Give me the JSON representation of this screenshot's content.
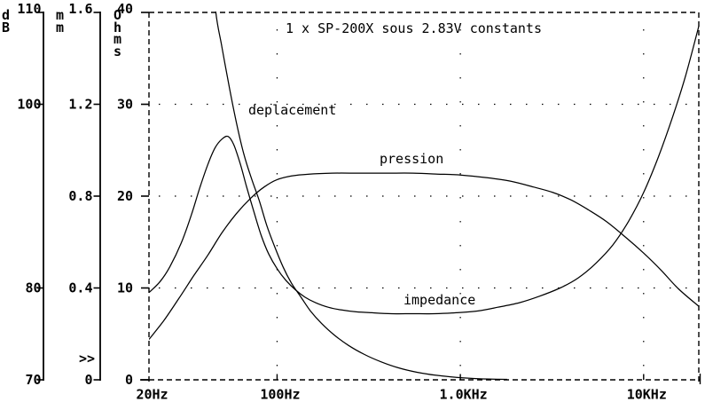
{
  "colors": {
    "fg": "#000000",
    "bg": "#ffffff"
  },
  "chart_data": {
    "type": "line",
    "title": "1 x SP-200X sous 2.83V constants",
    "x_axis": {
      "scale": "log",
      "range_hz": [
        20,
        20000
      ],
      "ticks": [
        {
          "f": 20,
          "label": "20Hz"
        },
        {
          "f": 100,
          "label": "100Hz"
        },
        {
          "f": 1000,
          "label": "1.0KHz"
        },
        {
          "f": 10000,
          "label": "10KHz"
        }
      ]
    },
    "y_axes": [
      {
        "name": "spl",
        "unit_label": "d\nB",
        "range": [
          70,
          110
        ],
        "ticks": [
          {
            "v": 110,
            "label": "110"
          },
          {
            "v": 100,
            "label": "100"
          },
          {
            "v": 80,
            "label": "80"
          },
          {
            "v": 70,
            "label": "70"
          }
        ]
      },
      {
        "name": "displacement",
        "unit_label": "m\nm",
        "range": [
          0,
          1.6
        ],
        "marker": ">>",
        "ticks": [
          {
            "v": 1.6,
            "label": "1.6"
          },
          {
            "v": 1.2,
            "label": "1.2"
          },
          {
            "v": 0.8,
            "label": "0.8"
          },
          {
            "v": 0.4,
            "label": "0.4"
          },
          {
            "v": 0,
            "label": "0"
          }
        ]
      },
      {
        "name": "impedance",
        "unit_label": "O\nh\nm\ns",
        "range": [
          0,
          40
        ],
        "ticks": [
          {
            "v": 40,
            "label": "40"
          },
          {
            "v": 30,
            "label": "30"
          },
          {
            "v": 20,
            "label": "20"
          },
          {
            "v": 10,
            "label": "10"
          },
          {
            "v": 0,
            "label": "0"
          }
        ]
      }
    ],
    "grid": {
      "h_ohms": [
        10,
        20,
        30
      ],
      "v_freq": [
        100,
        1000,
        10000
      ]
    },
    "series": [
      {
        "name": "deplacement",
        "label": "deplacement",
        "axis": "displacement",
        "unit": "mm",
        "points": [
          [
            40,
            2.3
          ],
          [
            43,
            1.95
          ],
          [
            46,
            1.62
          ],
          [
            50,
            1.45
          ],
          [
            55,
            1.27
          ],
          [
            60,
            1.12
          ],
          [
            66,
            0.98
          ],
          [
            73,
            0.87
          ],
          [
            80,
            0.78
          ],
          [
            88,
            0.67
          ],
          [
            97,
            0.58
          ],
          [
            108,
            0.49
          ],
          [
            120,
            0.42
          ],
          [
            135,
            0.36
          ],
          [
            152,
            0.3
          ],
          [
            175,
            0.245
          ],
          [
            205,
            0.195
          ],
          [
            245,
            0.15
          ],
          [
            300,
            0.11
          ],
          [
            370,
            0.078
          ],
          [
            460,
            0.052
          ],
          [
            580,
            0.033
          ],
          [
            730,
            0.02
          ],
          [
            950,
            0.011
          ],
          [
            1250,
            0.005
          ],
          [
            1800,
            0.002
          ]
        ]
      },
      {
        "name": "pression",
        "label": "pression",
        "axis": "spl",
        "unit": "dB",
        "points": [
          [
            20,
            74.4
          ],
          [
            24,
            76.4
          ],
          [
            29,
            78.8
          ],
          [
            35,
            81.3
          ],
          [
            42,
            83.6
          ],
          [
            50,
            86.0
          ],
          [
            60,
            88.1
          ],
          [
            72,
            89.8
          ],
          [
            85,
            91.0
          ],
          [
            100,
            91.8
          ],
          [
            120,
            92.2
          ],
          [
            150,
            92.4
          ],
          [
            200,
            92.5
          ],
          [
            280,
            92.5
          ],
          [
            400,
            92.5
          ],
          [
            550,
            92.5
          ],
          [
            750,
            92.4
          ],
          [
            1000,
            92.3
          ],
          [
            1400,
            92.0
          ],
          [
            1900,
            91.6
          ],
          [
            2500,
            91.0
          ],
          [
            3200,
            90.4
          ],
          [
            4000,
            89.6
          ],
          [
            5000,
            88.5
          ],
          [
            6300,
            87.2
          ],
          [
            8000,
            85.5
          ],
          [
            10000,
            83.8
          ],
          [
            12500,
            81.9
          ],
          [
            15500,
            79.9
          ],
          [
            20000,
            78.0
          ]
        ]
      },
      {
        "name": "impedance",
        "label": "impedance",
        "axis": "impedance",
        "unit": "Ohms",
        "points": [
          [
            20,
            9.5
          ],
          [
            23,
            10.7
          ],
          [
            26,
            12.3
          ],
          [
            30,
            14.9
          ],
          [
            34,
            17.9
          ],
          [
            38,
            21.0
          ],
          [
            42,
            23.5
          ],
          [
            46,
            25.3
          ],
          [
            50,
            26.2
          ],
          [
            54,
            26.5
          ],
          [
            58,
            25.6
          ],
          [
            63,
            23.5
          ],
          [
            68,
            21.1
          ],
          [
            75,
            18.2
          ],
          [
            82,
            15.7
          ],
          [
            90,
            13.7
          ],
          [
            100,
            12.1
          ],
          [
            112,
            10.8
          ],
          [
            126,
            9.8
          ],
          [
            142,
            9.0
          ],
          [
            162,
            8.4
          ],
          [
            190,
            7.9
          ],
          [
            225,
            7.6
          ],
          [
            270,
            7.4
          ],
          [
            330,
            7.3
          ],
          [
            420,
            7.2
          ],
          [
            550,
            7.2
          ],
          [
            720,
            7.2
          ],
          [
            950,
            7.3
          ],
          [
            1250,
            7.5
          ],
          [
            1600,
            7.9
          ],
          [
            2100,
            8.4
          ],
          [
            2700,
            9.1
          ],
          [
            3500,
            10.0
          ],
          [
            4400,
            11.1
          ],
          [
            5500,
            12.7
          ],
          [
            6800,
            14.7
          ],
          [
            8300,
            17.3
          ],
          [
            10000,
            20.4
          ],
          [
            12000,
            24.2
          ],
          [
            14500,
            28.8
          ],
          [
            17000,
            33.2
          ],
          [
            20000,
            38.5
          ]
        ]
      }
    ]
  }
}
